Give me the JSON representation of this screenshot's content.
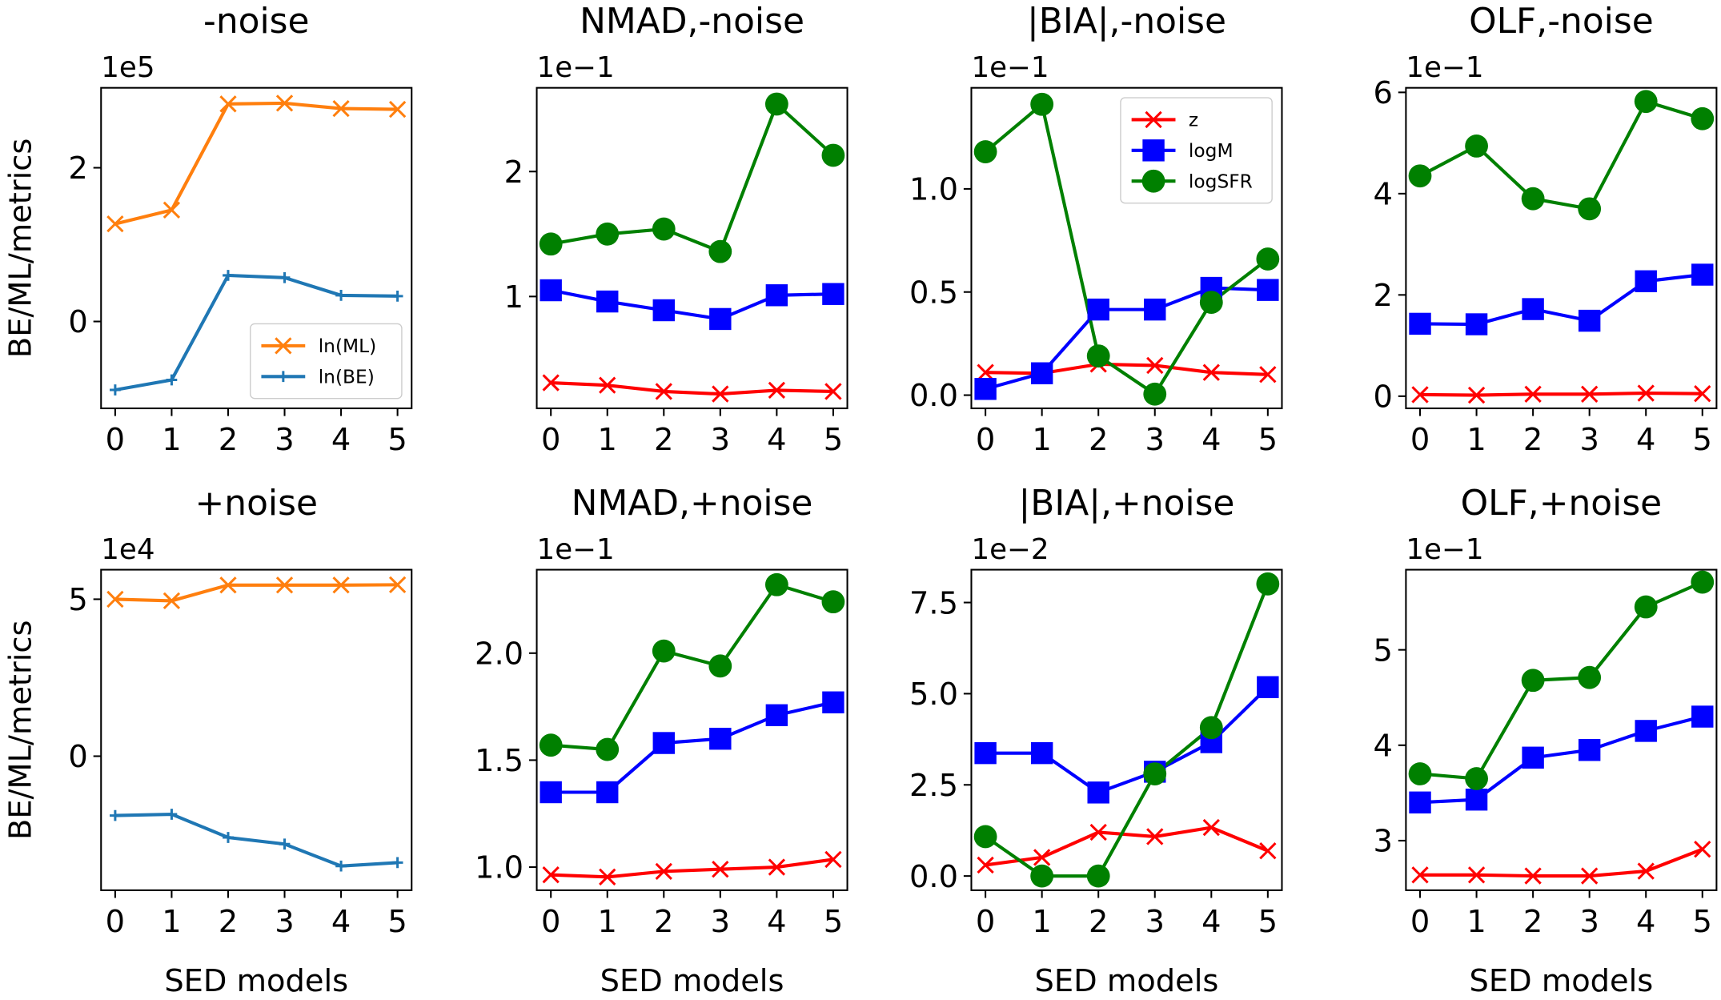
{
  "chart_data": [
    {
      "type": "line",
      "title": "-noise",
      "offset_label": "1e5",
      "ylabel": "BE/ML/metrics",
      "x": [
        0,
        1,
        2,
        3,
        4,
        5
      ],
      "xlim": [
        -0.25,
        5.25
      ],
      "xticks": [
        0,
        1,
        2,
        3,
        4,
        5
      ],
      "ylim": [
        -1.13,
        3.04
      ],
      "yticks": [
        0,
        2
      ],
      "legend": "lower right",
      "series": [
        {
          "name": "ln(ML)",
          "color": "#ff7f0e",
          "marker": "x",
          "values": [
            1.27,
            1.45,
            2.83,
            2.84,
            2.77,
            2.76
          ]
        },
        {
          "name": "ln(BE)",
          "color": "#1f77b4",
          "marker": "+",
          "values": [
            -0.89,
            -0.76,
            0.6,
            0.57,
            0.34,
            0.33
          ]
        }
      ]
    },
    {
      "type": "line",
      "title": "NMAD,-noise",
      "offset_label": "1e−1",
      "x": [
        0,
        1,
        2,
        3,
        4,
        5
      ],
      "xlim": [
        -0.25,
        5.25
      ],
      "xticks": [
        0,
        1,
        2,
        3,
        4,
        5
      ],
      "ylim": [
        0.105,
        2.67
      ],
      "yticks": [
        1,
        2
      ],
      "series": [
        {
          "name": "z",
          "color": "#ff0000",
          "marker": "x",
          "values": [
            0.31,
            0.29,
            0.24,
            0.22,
            0.25,
            0.24
          ]
        },
        {
          "name": "logM",
          "color": "#0000ff",
          "marker": "s",
          "values": [
            1.05,
            0.96,
            0.89,
            0.82,
            1.01,
            1.02
          ]
        },
        {
          "name": "logSFR",
          "color": "#008000",
          "marker": "o",
          "values": [
            1.42,
            1.5,
            1.54,
            1.36,
            2.54,
            2.13
          ]
        }
      ]
    },
    {
      "type": "line",
      "title": "|BIA|,-noise",
      "offset_label": "1e−1",
      "x": [
        0,
        1,
        2,
        3,
        4,
        5
      ],
      "xlim": [
        -0.25,
        5.25
      ],
      "xticks": [
        0,
        1,
        2,
        3,
        4,
        5
      ],
      "ylim": [
        -0.064,
        1.49
      ],
      "yticks": [
        {
          "value": 0,
          "label": "0.0"
        },
        0.5,
        {
          "value": 1,
          "label": "1.0"
        }
      ],
      "legend": "upper right",
      "series": [
        {
          "name": "z",
          "color": "#ff0000",
          "marker": "x",
          "values": [
            0.11,
            0.106,
            0.15,
            0.144,
            0.11,
            0.1
          ]
        },
        {
          "name": "logM",
          "color": "#0000ff",
          "marker": "s",
          "values": [
            0.03,
            0.106,
            0.415,
            0.415,
            0.52,
            0.51
          ]
        },
        {
          "name": "logSFR",
          "color": "#008000",
          "marker": "o",
          "values": [
            1.18,
            1.41,
            0.19,
            0.005,
            0.45,
            0.66
          ]
        }
      ]
    },
    {
      "type": "line",
      "title": "OLF,-noise",
      "offset_label": "1e−1",
      "x": [
        0,
        1,
        2,
        3,
        4,
        5
      ],
      "xlim": [
        -0.25,
        5.25
      ],
      "xticks": [
        0,
        1,
        2,
        3,
        4,
        5
      ],
      "ylim": [
        -0.24,
        6.09
      ],
      "yticks": [
        0,
        2,
        4,
        6
      ],
      "series": [
        {
          "name": "z",
          "color": "#ff0000",
          "marker": "x",
          "values": [
            0.03,
            0.02,
            0.04,
            0.04,
            0.06,
            0.05
          ]
        },
        {
          "name": "logM",
          "color": "#0000ff",
          "marker": "s",
          "values": [
            1.43,
            1.42,
            1.72,
            1.49,
            2.27,
            2.4
          ]
        },
        {
          "name": "logSFR",
          "color": "#008000",
          "marker": "o",
          "values": [
            4.35,
            4.94,
            3.9,
            3.7,
            5.82,
            5.48
          ]
        }
      ]
    },
    {
      "type": "line",
      "title": "+noise",
      "offset_label": "1e4",
      "ylabel": "BE/ML/metrics",
      "xlabel": "SED models",
      "x": [
        0,
        1,
        2,
        3,
        4,
        5
      ],
      "xlim": [
        -0.25,
        5.25
      ],
      "xticks": [
        0,
        1,
        2,
        3,
        4,
        5
      ],
      "ylim": [
        -4.27,
        5.94
      ],
      "yticks": [
        0,
        5
      ],
      "series": [
        {
          "name": "ln(ML)",
          "color": "#ff7f0e",
          "marker": "x",
          "values": [
            5.0,
            4.95,
            5.45,
            5.45,
            5.45,
            5.46
          ]
        },
        {
          "name": "ln(BE)",
          "color": "#1f77b4",
          "marker": "+",
          "values": [
            -1.89,
            -1.85,
            -2.59,
            -2.8,
            -3.5,
            -3.39
          ]
        }
      ]
    },
    {
      "type": "line",
      "title": "NMAD,+noise",
      "offset_label": "1e−1",
      "xlabel": "SED models",
      "x": [
        0,
        1,
        2,
        3,
        4,
        5
      ],
      "xlim": [
        -0.25,
        5.25
      ],
      "xticks": [
        0,
        1,
        2,
        3,
        4,
        5
      ],
      "ylim": [
        0.892,
        2.39
      ],
      "yticks": [
        {
          "value": 1,
          "label": "1.0"
        },
        1.5,
        {
          "value": 2,
          "label": "2.0"
        }
      ],
      "series": [
        {
          "name": "z",
          "color": "#ff0000",
          "marker": "x",
          "values": [
            0.964,
            0.954,
            0.98,
            0.99,
            1.0,
            1.036
          ]
        },
        {
          "name": "logM",
          "color": "#0000ff",
          "marker": "s",
          "values": [
            1.35,
            1.35,
            1.58,
            1.6,
            1.71,
            1.77
          ]
        },
        {
          "name": "logSFR",
          "color": "#008000",
          "marker": "o",
          "values": [
            1.57,
            1.55,
            2.01,
            1.94,
            2.32,
            2.24
          ]
        }
      ]
    },
    {
      "type": "line",
      "title": "|BIA|,+noise",
      "offset_label": "1e−2",
      "xlabel": "SED models",
      "x": [
        0,
        1,
        2,
        3,
        4,
        5
      ],
      "xlim": [
        -0.25,
        5.25
      ],
      "xticks": [
        0,
        1,
        2,
        3,
        4,
        5
      ],
      "ylim": [
        -0.39,
        8.4
      ],
      "yticks": [
        {
          "value": 0,
          "label": "0.0"
        },
        2.5,
        {
          "value": 5,
          "label": "5.0"
        },
        7.5
      ],
      "series": [
        {
          "name": "z",
          "color": "#ff0000",
          "marker": "x",
          "values": [
            0.3,
            0.51,
            1.2,
            1.08,
            1.33,
            0.69
          ]
        },
        {
          "name": "logM",
          "color": "#0000ff",
          "marker": "s",
          "values": [
            3.37,
            3.37,
            2.29,
            2.86,
            3.67,
            5.18
          ]
        },
        {
          "name": "logSFR",
          "color": "#008000",
          "marker": "o",
          "values": [
            1.08,
            0,
            0,
            2.8,
            4.07,
            8.01
          ]
        }
      ]
    },
    {
      "type": "line",
      "title": "OLF,+noise",
      "offset_label": "1e−1",
      "xlabel": "SED models",
      "x": [
        0,
        1,
        2,
        3,
        4,
        5
      ],
      "xlim": [
        -0.25,
        5.25
      ],
      "xticks": [
        0,
        1,
        2,
        3,
        4,
        5
      ],
      "ylim": [
        2.48,
        5.84
      ],
      "yticks": [
        3,
        4,
        5
      ],
      "series": [
        {
          "name": "z",
          "color": "#ff0000",
          "marker": "x",
          "values": [
            2.64,
            2.64,
            2.63,
            2.63,
            2.68,
            2.91
          ]
        },
        {
          "name": "logM",
          "color": "#0000ff",
          "marker": "s",
          "values": [
            3.4,
            3.43,
            3.87,
            3.95,
            4.15,
            4.3
          ]
        },
        {
          "name": "logSFR",
          "color": "#008000",
          "marker": "o",
          "values": [
            3.7,
            3.65,
            4.68,
            4.71,
            5.45,
            5.71
          ]
        }
      ]
    }
  ]
}
